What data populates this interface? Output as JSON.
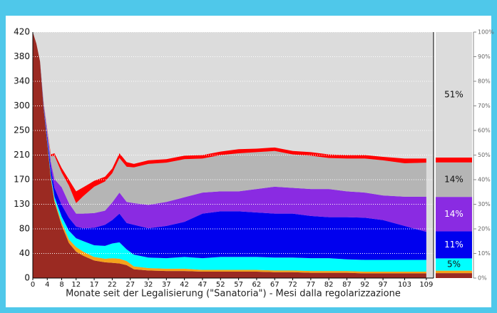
{
  "chart_data": [
    {
      "type": "stacked-area",
      "x_label": "Monate seit der Legalisierung (\"Sanatoria\") - Mesi dalla regolarizzazione",
      "x": [
        0,
        1,
        2,
        3,
        4,
        5,
        6,
        8,
        10,
        12,
        14,
        17,
        20,
        22,
        24,
        26,
        28,
        32,
        37,
        42,
        47,
        52,
        57,
        62,
        67,
        72,
        77,
        82,
        87,
        92,
        97,
        103,
        109
      ],
      "series": [
        {
          "color": "#9b2a22",
          "values": [
            420,
            400,
            370,
            290,
            230,
            170,
            130,
            90,
            60,
            45,
            38,
            30,
            27,
            26,
            25,
            22,
            15,
            13,
            12,
            12,
            11,
            11,
            11,
            11,
            10,
            10,
            9,
            9,
            9,
            8,
            8,
            8,
            8
          ]
        },
        {
          "color": "#f5a21b",
          "values": [
            0,
            0,
            0,
            0,
            1,
            2,
            3,
            5,
            6,
            8,
            7,
            6,
            6,
            8,
            8,
            7,
            5,
            4,
            4,
            4,
            3,
            3,
            3,
            3,
            3,
            3,
            3,
            3,
            3,
            3,
            3,
            3,
            3
          ]
        },
        {
          "color": "#00ffff",
          "values": [
            0,
            0,
            0,
            2,
            3,
            4,
            6,
            10,
            15,
            15,
            18,
            20,
            22,
            25,
            28,
            20,
            20,
            18,
            18,
            20,
            20,
            22,
            22,
            22,
            22,
            22,
            22,
            22,
            20,
            20,
            20,
            20,
            20
          ]
        },
        {
          "color": "#0000ee",
          "values": [
            0,
            0,
            0,
            3,
            8,
            12,
            15,
            20,
            22,
            20,
            22,
            30,
            36,
            40,
            49,
            45,
            51,
            50,
            55,
            60,
            76,
            78,
            78,
            76,
            75,
            75,
            72,
            70,
            72,
            72,
            68,
            58,
            48
          ]
        },
        {
          "color": "#8a2be2",
          "values": [
            0,
            0,
            0,
            2,
            5,
            10,
            15,
            30,
            25,
            22,
            25,
            25,
            24,
            30,
            36,
            36,
            37,
            40,
            41,
            42,
            36,
            34,
            34,
            40,
            46,
            44,
            46,
            48,
            44,
            43,
            42,
            50,
            60
          ]
        },
        {
          "color": "#b5b5b5",
          "values": [
            0,
            0,
            0,
            2,
            5,
            10,
            40,
            25,
            30,
            18,
            30,
            45,
            50,
            50,
            59,
            60,
            61,
            70,
            67,
            65,
            58,
            62,
            65,
            63,
            61,
            57,
            57,
            53,
            56,
            58,
            60,
            57,
            58
          ]
        },
        {
          "color": "#ff0000",
          "values": [
            0,
            0,
            0,
            1,
            2,
            3,
            4,
            8,
            10,
            20,
            15,
            10,
            8,
            8,
            8,
            8,
            6,
            6,
            6,
            6,
            6,
            6,
            7,
            6,
            6,
            6,
            6,
            6,
            6,
            6,
            6,
            8,
            7
          ]
        }
      ],
      "background": "#dcdcdc",
      "xlim": [
        0,
        111
      ],
      "xticks": [
        0,
        4,
        8,
        12,
        17,
        22,
        27,
        32,
        37,
        42,
        47,
        52,
        57,
        62,
        67,
        72,
        77,
        82,
        87,
        92,
        97,
        103,
        109
      ],
      "ylim": [
        0,
        420
      ],
      "yticks": [
        0,
        {
          "value": 42,
          "label": "40"
        },
        {
          "value": 84,
          "label": "80"
        },
        {
          "value": 126,
          "label": "130"
        },
        {
          "value": 168,
          "label": "170"
        },
        210,
        {
          "value": 252,
          "label": "250"
        },
        {
          "value": 294,
          "label": "300"
        },
        {
          "value": 336,
          "label": "340"
        },
        {
          "value": 378,
          "label": "380"
        },
        420
      ],
      "grid": true
    },
    {
      "type": "stacked-share",
      "values": [
        2,
        1,
        5,
        11,
        14,
        14,
        2,
        51
      ],
      "colors": [
        "#9b2a22",
        "#f5a21b",
        "#00ffff",
        "#0000ee",
        "#8a2be2",
        "#b5b5b5",
        "#ff0000",
        "#dcdcdc"
      ],
      "value_labels": [
        null,
        null,
        "5%",
        "11%",
        "14%",
        "14%",
        null,
        "51%"
      ],
      "ylim": [
        0,
        100
      ],
      "yticks": [
        {
          "value": 0,
          "label": "0%"
        },
        {
          "value": 10,
          "label": "10%"
        },
        {
          "value": 20,
          "label": "20%"
        },
        {
          "value": 30,
          "label": "30%"
        },
        {
          "value": 40,
          "label": "40%"
        },
        {
          "value": 50,
          "label": "50%"
        },
        {
          "value": 60,
          "label": "60%"
        },
        {
          "value": 70,
          "label": "70%"
        },
        {
          "value": 80,
          "label": "80%"
        },
        {
          "value": 90,
          "label": "90%"
        },
        {
          "value": 100,
          "label": "100%"
        }
      ]
    }
  ]
}
